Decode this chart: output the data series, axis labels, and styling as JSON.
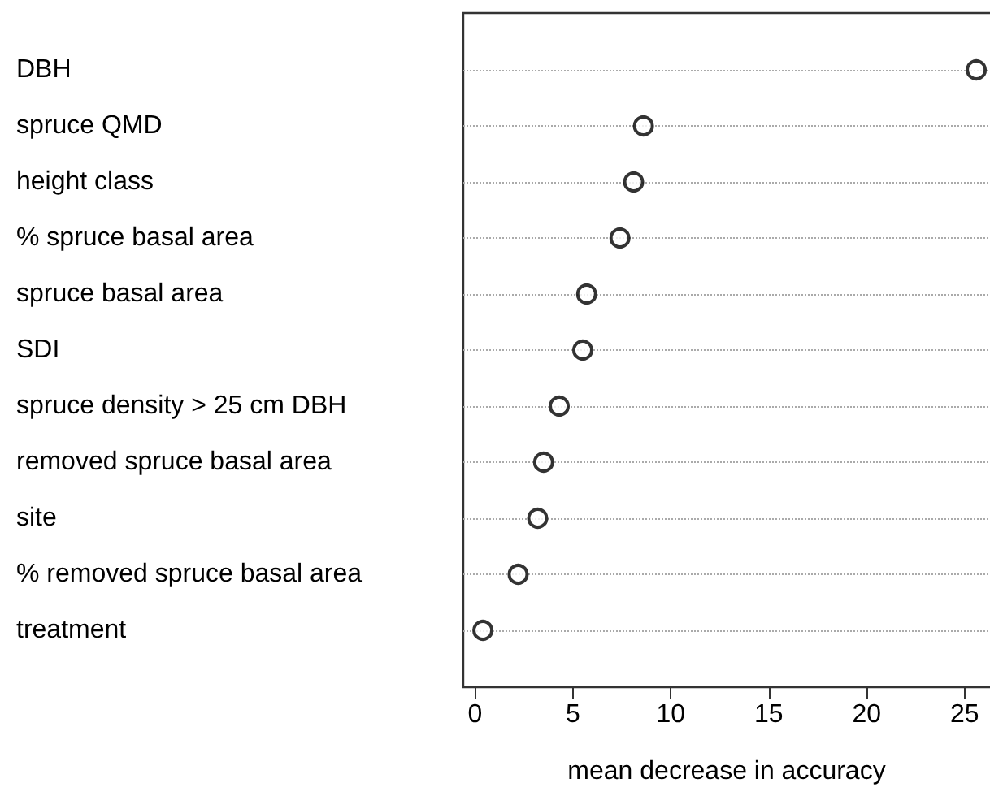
{
  "chart_data": {
    "type": "scatter",
    "orientation": "horizontal",
    "xlabel": "mean decrease in accuracy",
    "categories": [
      "DBH",
      "spruce QMD",
      "height class",
      "% spruce basal area",
      "spruce basal area",
      "SDI",
      "spruce density > 25 cm DBH",
      "removed spruce basal area",
      "site",
      "% removed spruce basal area",
      "treatment"
    ],
    "values": [
      25.6,
      8.6,
      8.1,
      7.4,
      5.7,
      5.5,
      4.3,
      3.5,
      3.2,
      2.2,
      0.4
    ],
    "color": "#000000",
    "xlim": [
      -0.6,
      26.3
    ],
    "xticks": [
      0,
      5,
      10,
      15,
      20,
      25
    ],
    "grid": "y",
    "marker": "circle"
  }
}
